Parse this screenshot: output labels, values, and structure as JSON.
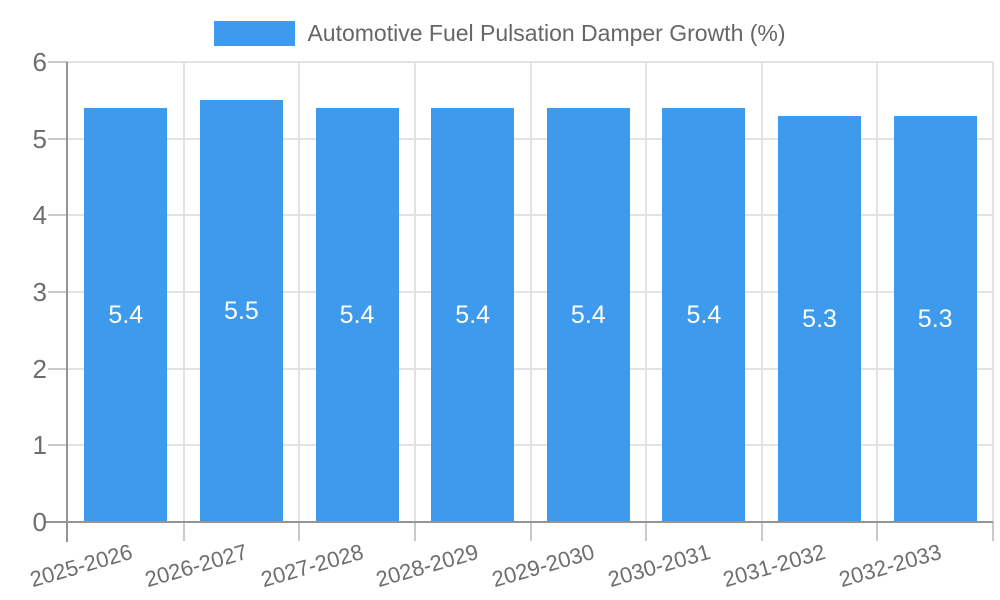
{
  "legend": {
    "label": "Automotive Fuel Pulsation Damper Growth (%)"
  },
  "chart_data": {
    "type": "bar",
    "title": "Automotive Fuel Pulsation Damper Growth (%)",
    "categories": [
      "2025-2026",
      "2026-2027",
      "2027-2028",
      "2028-2029",
      "2029-2030",
      "2030-2031",
      "2031-2032",
      "2032-2033"
    ],
    "values": [
      5.4,
      5.5,
      5.4,
      5.4,
      5.4,
      5.4,
      5.3,
      5.3
    ],
    "bar_value_labels": [
      "5.4",
      "5.5",
      "5.4",
      "5.4",
      "5.4",
      "5.4",
      "5.3",
      "5.3"
    ],
    "xlabel": "",
    "ylabel": "",
    "ylim": [
      0,
      6
    ],
    "yticks": [
      0,
      1,
      2,
      3,
      4,
      5,
      6
    ],
    "grid": true,
    "legend_position": "top"
  },
  "colors": {
    "bar": "#3d9aed",
    "title_text": "#666666",
    "axis_text": "#6e6e6e",
    "axis_line": "#949494",
    "grid_line": "#e3e3e3",
    "tick_line": "#c9c9c9",
    "value_label": "#ffffff",
    "background": "#ffffff"
  }
}
